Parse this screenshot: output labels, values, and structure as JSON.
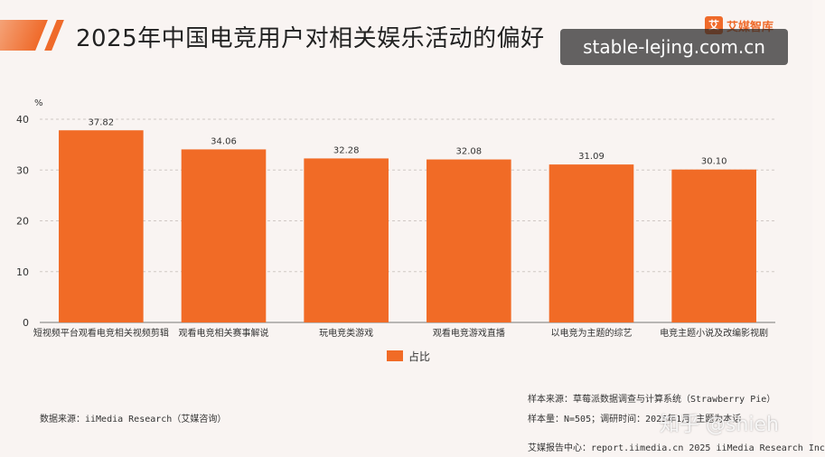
{
  "header": {
    "title": "2025年中国电竞用户对相关娱乐活动的偏好",
    "brand_icon": "艾",
    "brand_name": "艾媒智库"
  },
  "watermarks": {
    "site": "stable-lejing.com.cn",
    "zhihu": "知乎 @shieh"
  },
  "colors": {
    "bar": "#f16b26",
    "accent": "#ef6a2a",
    "background": "#f9f4f2"
  },
  "chart_data": {
    "type": "bar",
    "categories": [
      "短视频平台观看电竞相关视频剪辑",
      "观看电竞相关赛事解说",
      "玩电竞类游戏",
      "观看电竞游戏直播",
      "以电竞为主题的综艺",
      "电竞主题小说及改编影视剧"
    ],
    "series": [
      {
        "name": "占比",
        "values": [
          37.82,
          34.06,
          32.28,
          32.08,
          31.09,
          30.1
        ]
      }
    ],
    "value_labels": [
      "37.82",
      "34.06",
      "32.28",
      "32.08",
      "31.09",
      "30.10"
    ],
    "title": "",
    "ylabel": "%",
    "ylim": [
      0,
      40
    ],
    "yticks": [
      0,
      10,
      20,
      30,
      40
    ],
    "grid": true,
    "legend": "bottom-center"
  },
  "footer": {
    "data_source": "数据来源：iiMedia Research（艾媒咨询）",
    "sample_source": "样本来源：草莓派数据调查与计算系统（Strawberry Pie）",
    "sample_size": "样本量：N=505；调研时间：2025年1月   主题为本话",
    "report_center": "艾媒报告中心：report.iimedia.cn   2025 iiMedia Research Inc"
  }
}
